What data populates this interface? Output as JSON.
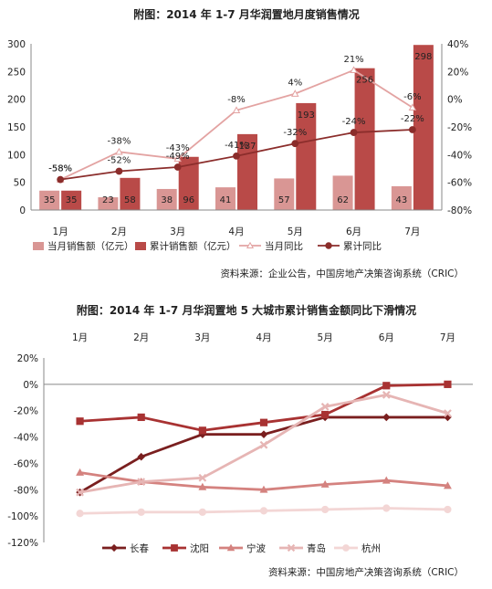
{
  "chart_data": [
    {
      "type": "bar",
      "title": "附图：2014 年 1-7 月华润置地月度销售情况",
      "categories": [
        "1月",
        "2月",
        "3月",
        "4月",
        "5月",
        "6月",
        "7月"
      ],
      "ylim": [
        0,
        300
      ],
      "yticks": [
        "0",
        "50",
        "100",
        "150",
        "200",
        "250",
        "300"
      ],
      "y2lim": [
        -80,
        40
      ],
      "y2ticks": [
        "-80%",
        "-60%",
        "-40%",
        "-20%",
        "0%",
        "20%",
        "40%"
      ],
      "series": [
        {
          "name": "当月销售额（亿元）",
          "kind": "bar",
          "color": "#d99694",
          "values": [
            35,
            23,
            38,
            41,
            57,
            62,
            43
          ],
          "labels": [
            "35",
            "23",
            "38",
            "41",
            "57",
            "62",
            "43"
          ]
        },
        {
          "name": "累计销售额（亿元）",
          "kind": "bar",
          "color": "#b94a48",
          "values": [
            35,
            58,
            96,
            137,
            193,
            256,
            298
          ],
          "labels": [
            "35",
            "58",
            "96",
            "137",
            "193",
            "256",
            "298"
          ]
        },
        {
          "name": "当月同比",
          "kind": "line",
          "axis": "right",
          "color": "#e3a3a2",
          "marker": "triangle",
          "values": [
            -58,
            -38,
            -43,
            -8,
            4,
            21,
            -6
          ],
          "labels": [
            "-58%",
            "-38%",
            "-43%",
            "-8%",
            "4%",
            "21%",
            "-6%"
          ]
        },
        {
          "name": "累计同比",
          "kind": "line",
          "axis": "right",
          "color": "#8b2d2b",
          "marker": "circle",
          "values": [
            -58,
            -52,
            -49,
            -41,
            -32,
            -24,
            -22
          ],
          "labels": [
            "-58%",
            "-52%",
            "-49%",
            "-41%",
            "-32%",
            "-24%",
            "-22%"
          ]
        }
      ],
      "source": "资料来源：企业公告，中国房地产决策咨询系统（CRIC）"
    },
    {
      "type": "line",
      "title": "附图：2014 年 1-7 月华润置地 5 大城市累计销售金额同比下滑情况",
      "categories": [
        "1月",
        "2月",
        "3月",
        "4月",
        "5月",
        "6月",
        "7月"
      ],
      "ylim": [
        -120,
        20
      ],
      "yticks": [
        "-120%",
        "-100%",
        "-80%",
        "-60%",
        "-40%",
        "-20%",
        "0%",
        "20%"
      ],
      "series": [
        {
          "name": "长春",
          "color": "#7a1f1f",
          "marker": "diamond",
          "values": [
            -82,
            -55,
            -38,
            -38,
            -25,
            -25,
            -25
          ]
        },
        {
          "name": "沈阳",
          "color": "#a83232",
          "marker": "square",
          "values": [
            -28,
            -25,
            -35,
            -29,
            -23,
            -1,
            0
          ]
        },
        {
          "name": "宁波",
          "color": "#d4827f",
          "marker": "triangle",
          "values": [
            -67,
            -74,
            -78,
            -80,
            -76,
            -73,
            -77
          ]
        },
        {
          "name": "青岛",
          "color": "#e6b5b4",
          "marker": "x",
          "values": [
            -82,
            -74,
            -71,
            -46,
            -17,
            -8,
            -22
          ]
        },
        {
          "name": "杭州",
          "color": "#f3d6d5",
          "marker": "circle",
          "values": [
            -98,
            -97,
            -97,
            -96,
            -95,
            -94,
            -95
          ]
        }
      ],
      "source": "资料来源：中国房地产决策咨询系统（CRIC）"
    }
  ]
}
